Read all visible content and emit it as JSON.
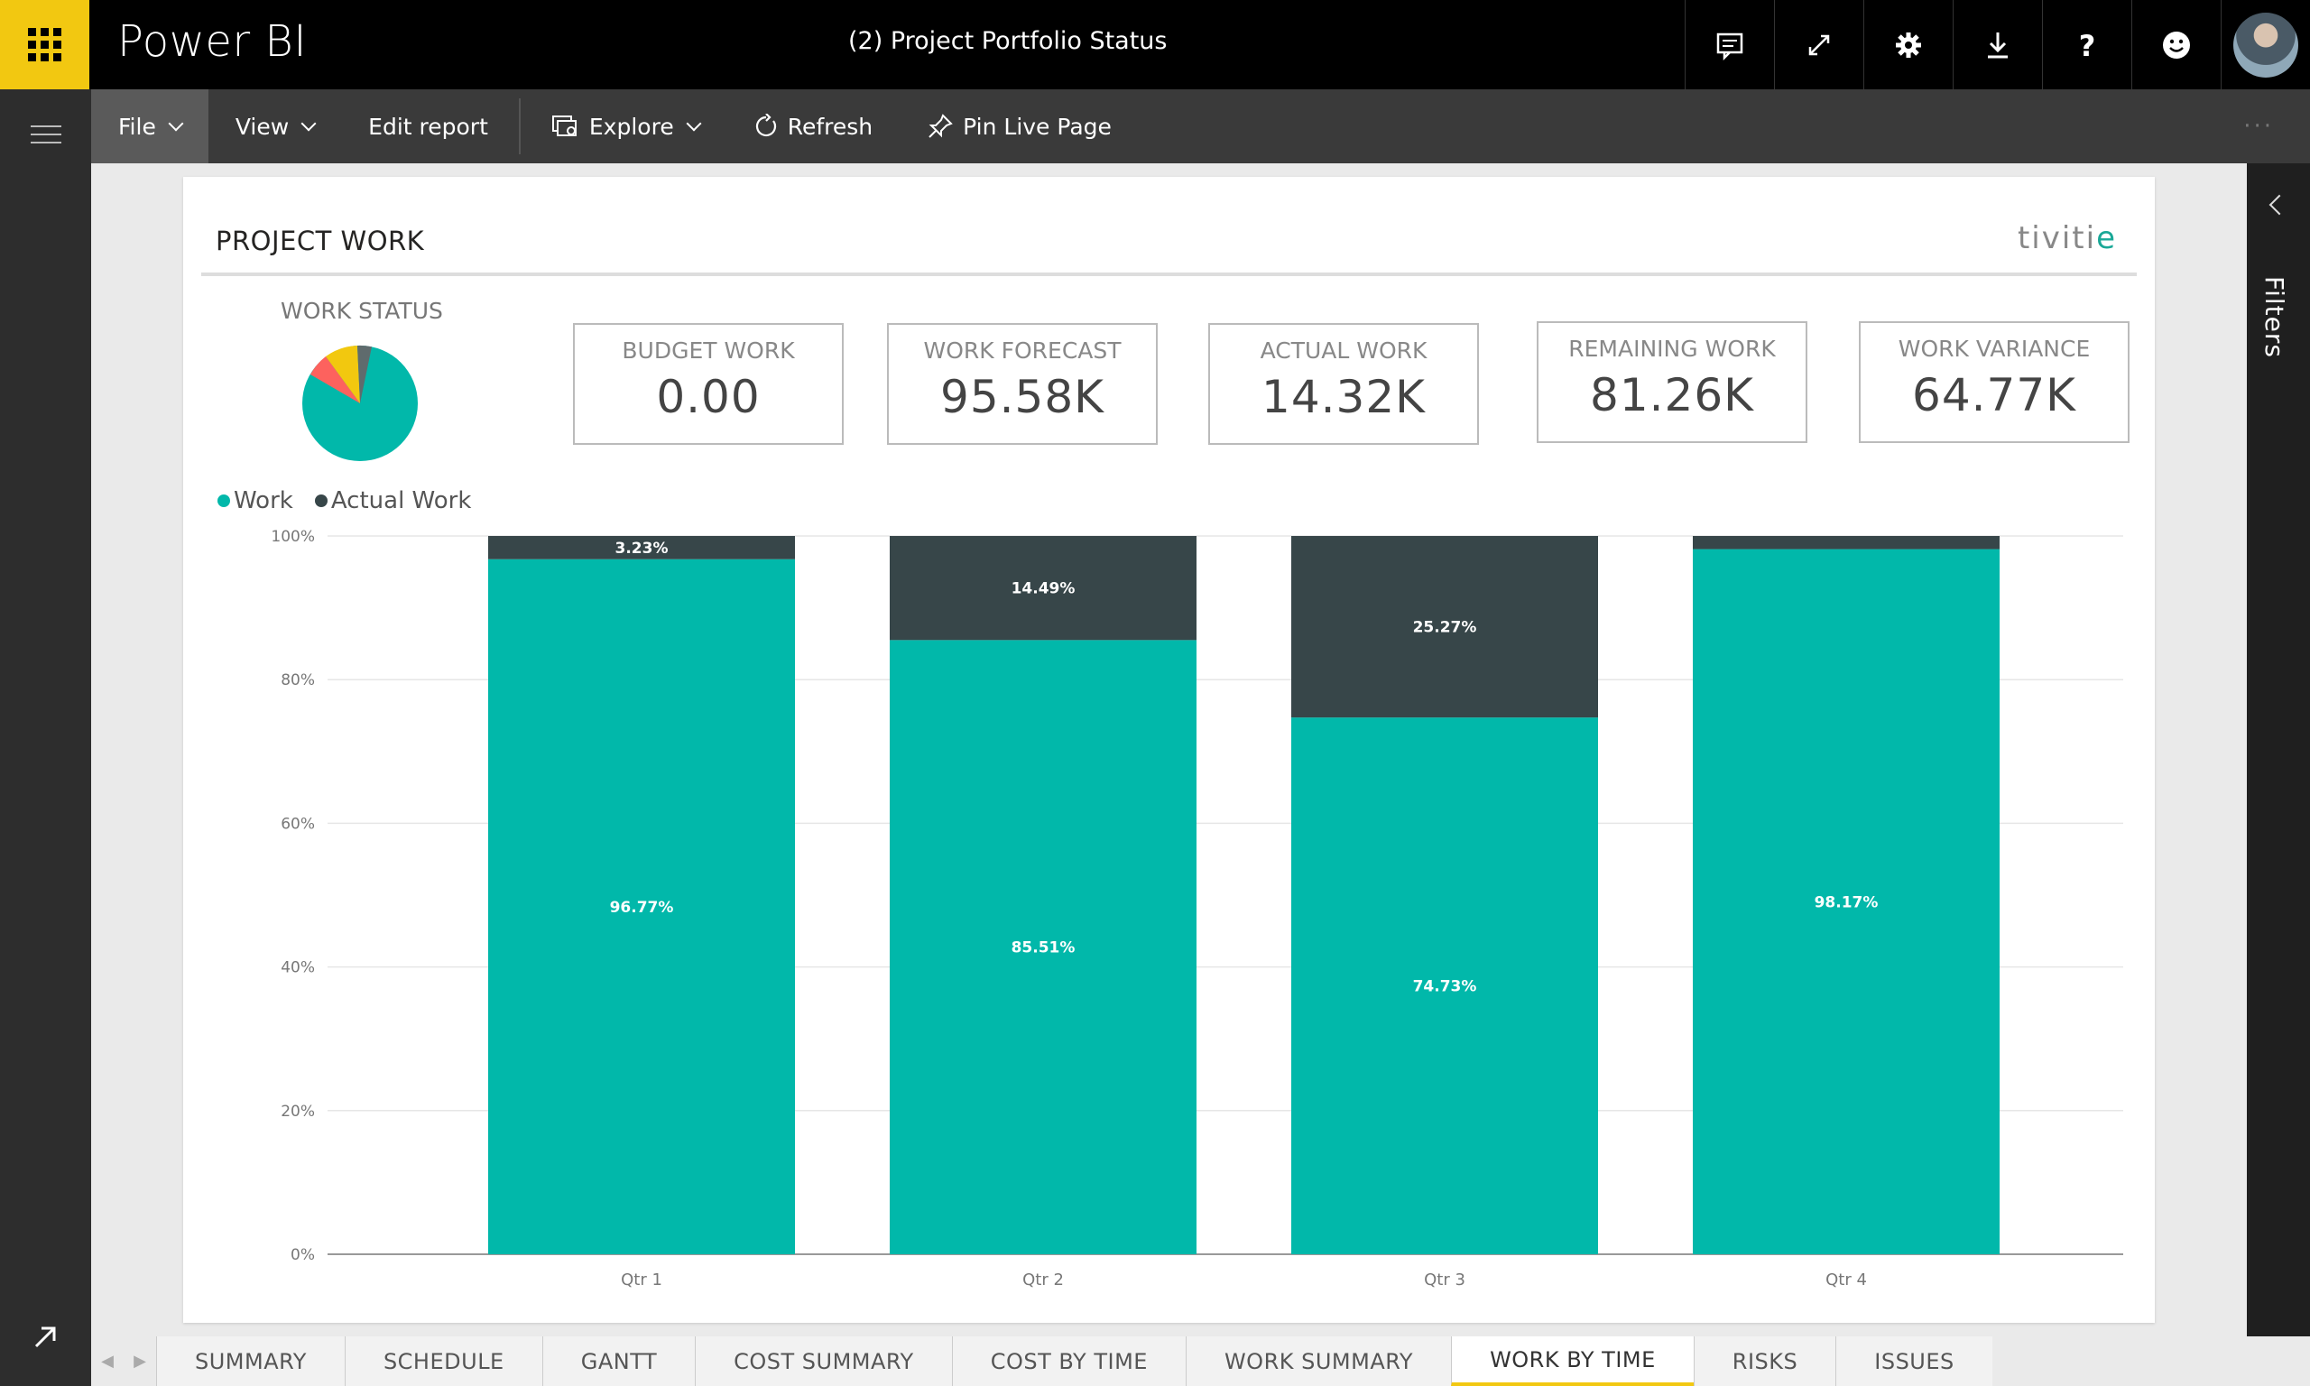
{
  "header": {
    "brand": "Power BI",
    "report_title": "(2) Project Portfolio Status",
    "icons": [
      "comment-icon",
      "fullscreen-icon",
      "gear-icon",
      "download-icon",
      "help-icon",
      "smiley-icon"
    ]
  },
  "toolbar": {
    "file": "File",
    "view": "View",
    "edit_report": "Edit report",
    "explore": "Explore",
    "refresh": "Refresh",
    "pin_live_page": "Pin Live Page",
    "more": "···"
  },
  "filters": {
    "label": "Filters"
  },
  "report": {
    "title": "PROJECT WORK",
    "logo_prefix": "tiviti",
    "logo_accent": "e",
    "work_status_title": "WORK STATUS",
    "work_status_colors": [
      "#01b8aa",
      "#fd625e",
      "#f2c80f",
      "#5f6b6d"
    ],
    "kpis": [
      {
        "label": "BUDGET WORK",
        "value": "0.00"
      },
      {
        "label": "WORK FORECAST",
        "value": "95.58K"
      },
      {
        "label": "ACTUAL WORK",
        "value": "14.32K"
      },
      {
        "label": "REMAINING WORK",
        "value": "81.26K"
      },
      {
        "label": "WORK VARIANCE",
        "value": "64.77K"
      }
    ],
    "legend": [
      {
        "name": "Work",
        "color": "#01b8aa"
      },
      {
        "name": "Actual Work",
        "color": "#374649"
      }
    ]
  },
  "chart_data": {
    "type": "bar",
    "stacked": "100%",
    "categories": [
      "Qtr 1",
      "Qtr 2",
      "Qtr 3",
      "Qtr 4"
    ],
    "series": [
      {
        "name": "Work",
        "color": "#01b8aa",
        "values": [
          96.77,
          85.51,
          74.73,
          98.17
        ],
        "labels": [
          "96.77%",
          "85.51%",
          "74.73%",
          "98.17%"
        ]
      },
      {
        "name": "Actual Work",
        "color": "#374649",
        "values": [
          3.23,
          14.49,
          25.27,
          1.83
        ],
        "labels": [
          "3.23%",
          "14.49%",
          "25.27%",
          ""
        ]
      }
    ],
    "yticks": [
      "0%",
      "20%",
      "40%",
      "60%",
      "80%",
      "100%"
    ],
    "ylim": [
      0,
      100
    ],
    "grid": true,
    "legend_position": "top-left"
  },
  "tabs": [
    "SUMMARY",
    "SCHEDULE",
    "GANTT",
    "COST SUMMARY",
    "COST BY TIME",
    "WORK SUMMARY",
    "WORK BY TIME",
    "RISKS",
    "ISSUES"
  ],
  "active_tab": "WORK BY TIME"
}
